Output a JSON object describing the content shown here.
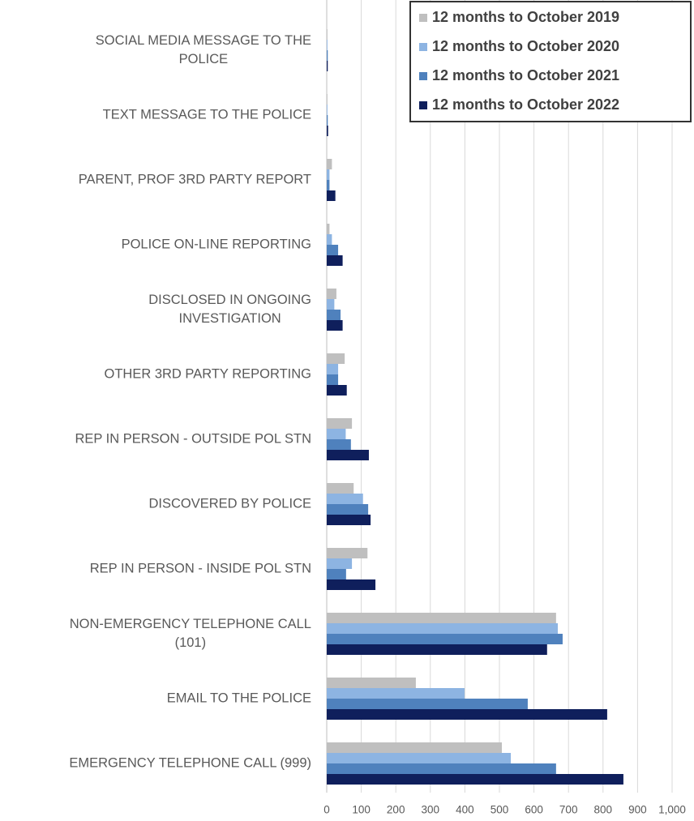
{
  "chart_data": {
    "type": "hbar",
    "categories": [
      "SOCIAL MEDIA MESSAGE TO THE\nPOLICE",
      "TEXT MESSAGE TO THE POLICE",
      "PARENT, PROF 3RD PARTY REPORT",
      "POLICE ON-LINE REPORTING",
      "DISCLOSED IN ONGOING\nINVESTIGATION",
      "OTHER 3RD PARTY REPORTING",
      "REP IN PERSON - OUTSIDE POL STN",
      "DISCOVERED BY POLICE",
      "REP IN PERSON - INSIDE POL STN",
      "NON-EMERGENCY TELEPHONE CALL\n(101)",
      "EMAIL TO THE POLICE",
      "EMERGENCY TELEPHONE CALL (999)"
    ],
    "series": [
      {
        "name": "12 months to October 2019",
        "color": "#bfbfbf",
        "values": [
          2,
          2,
          15,
          8,
          28,
          52,
          73,
          78,
          118,
          664,
          258,
          507
        ]
      },
      {
        "name": "12 months to October 2020",
        "color": "#8db4e2",
        "values": [
          2,
          2,
          8,
          15,
          22,
          33,
          55,
          105,
          73,
          669,
          399,
          533
        ]
      },
      {
        "name": "12 months to October 2021",
        "color": "#4f81bd",
        "values": [
          3,
          3,
          8,
          33,
          40,
          33,
          70,
          120,
          56,
          683,
          582,
          664
        ]
      },
      {
        "name": "12 months to October 2022",
        "color": "#0f1f5c",
        "values": [
          3,
          4,
          25,
          46,
          46,
          58,
          122,
          127,
          141,
          638,
          812,
          859
        ]
      }
    ],
    "xlim": [
      0,
      1000
    ],
    "xticks": [
      0,
      100,
      200,
      300,
      400,
      500,
      600,
      700,
      800,
      900,
      {
        "value": 1000,
        "label": "1,000"
      }
    ],
    "grid": true,
    "legend": "top-right"
  }
}
